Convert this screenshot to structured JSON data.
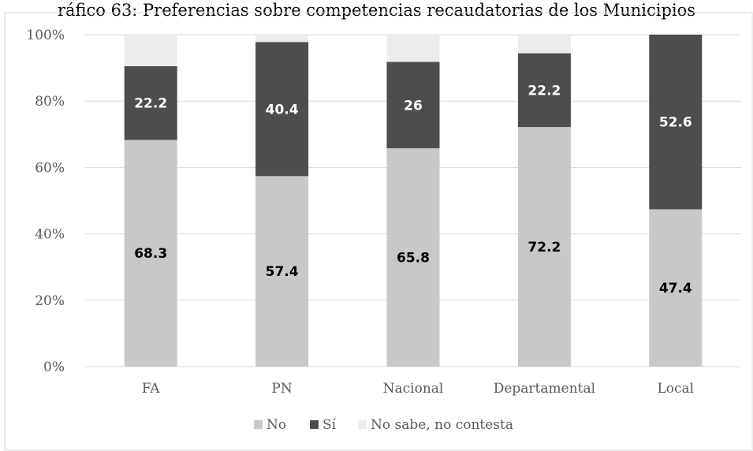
{
  "chart_data": {
    "type": "bar",
    "stacked": true,
    "title": "ráfico 63: Preferencias sobre competencias recaudatorias de los Municipios",
    "categories": [
      "FA",
      "PN",
      "Nacional",
      "Departamental",
      "Local"
    ],
    "series": [
      {
        "name": "No",
        "color": "#c8c8c8",
        "label_color": "#000000",
        "values": [
          68.3,
          57.4,
          65.8,
          72.2,
          47.4
        ]
      },
      {
        "name": "Sí",
        "color": "#4d4d4d",
        "label_color": "#ffffff",
        "values": [
          22.2,
          40.4,
          26,
          22.2,
          52.6
        ]
      },
      {
        "name": "No sabe, no contesta",
        "color": "#ececec",
        "label_color": "#000000",
        "values": [
          9.5,
          2.2,
          8.2,
          5.6,
          0
        ],
        "show_labels": false
      }
    ],
    "ylim": [
      0,
      100
    ],
    "yticks": [
      "0%",
      "20%",
      "40%",
      "60%",
      "80%",
      "100%"
    ],
    "ytick_values": [
      0,
      20,
      40,
      60,
      80,
      100
    ],
    "xlabel": "",
    "ylabel": "",
    "grid": true,
    "legend": "bottom",
    "gridline_color": "#d9d9d9"
  }
}
